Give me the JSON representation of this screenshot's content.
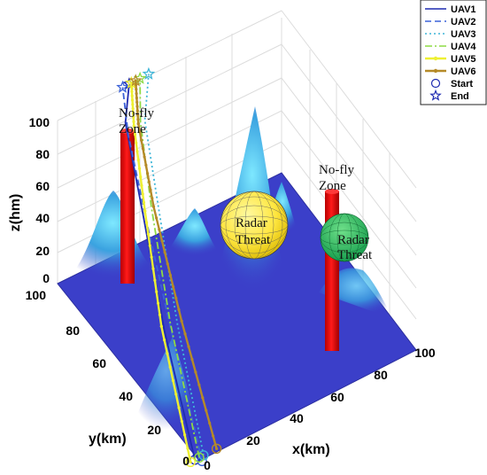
{
  "chart_data": {
    "type": "line",
    "title": "",
    "xlabel": "x(km)",
    "ylabel": "y(km)",
    "zlabel": "z(hm)",
    "xlim": [
      0,
      100
    ],
    "ylim": [
      0,
      100
    ],
    "zlim": [
      0,
      100
    ],
    "x_ticks": [
      "0",
      "20",
      "40",
      "60",
      "80",
      "100"
    ],
    "y_ticks": [
      "0",
      "20",
      "40",
      "60",
      "80",
      "100"
    ],
    "z_ticks": [
      "0",
      "20",
      "40",
      "60",
      "80",
      "100"
    ],
    "grid": true,
    "legend_position": "top-right",
    "legend": [
      "UAV1",
      "UAV2",
      "UAV3",
      "UAV4",
      "UAV5",
      "UAV6",
      "Start",
      "End"
    ],
    "annotations": {
      "nofly1": [
        "No-fly",
        "Zone"
      ],
      "nofly2": [
        "No-fly",
        "Zone"
      ],
      "radar1": [
        "Radar",
        "Threat"
      ],
      "radar2": [
        "Radar",
        "Threat"
      ]
    },
    "series": [
      {
        "name": "UAV1",
        "color": "#1f2bb0",
        "style": "solid",
        "points": [
          [
            -2,
            0,
            2
          ],
          [
            10,
            40,
            30
          ],
          [
            20,
            70,
            60
          ],
          [
            28,
            95,
            85
          ],
          [
            33,
            100,
            100
          ]
        ]
      },
      {
        "name": "UAV2",
        "color": "#3b62d8",
        "style": "dashed",
        "points": [
          [
            0,
            -2,
            2
          ],
          [
            12,
            38,
            30
          ],
          [
            20,
            68,
            60
          ],
          [
            26,
            90,
            85
          ],
          [
            30,
            100,
            100
          ]
        ]
      },
      {
        "name": "UAV3",
        "color": "#3fb6d8",
        "style": "dotted",
        "points": [
          [
            2,
            0,
            2
          ],
          [
            16,
            40,
            30
          ],
          [
            28,
            72,
            60
          ],
          [
            35,
            92,
            85
          ],
          [
            42,
            100,
            100
          ]
        ]
      },
      {
        "name": "UAV4",
        "color": "#8edb45",
        "style": "dashdot",
        "points": [
          [
            0,
            0,
            2
          ],
          [
            14,
            42,
            30
          ],
          [
            25,
            72,
            60
          ],
          [
            33,
            92,
            85
          ],
          [
            38,
            100,
            100
          ]
        ]
      },
      {
        "name": "UAV5",
        "color": "#eef032",
        "style": "markers",
        "points": [
          [
            -4,
            0,
            2
          ],
          [
            10,
            42,
            30
          ],
          [
            22,
            72,
            60
          ],
          [
            30,
            92,
            85
          ],
          [
            34,
            100,
            100
          ]
        ]
      },
      {
        "name": "UAV6",
        "color": "#b58a28",
        "style": "markers",
        "points": [
          [
            8,
            0,
            2
          ],
          [
            18,
            40,
            30
          ],
          [
            26,
            72,
            60
          ],
          [
            32,
            92,
            85
          ],
          [
            36,
            100,
            100
          ]
        ]
      }
    ]
  }
}
